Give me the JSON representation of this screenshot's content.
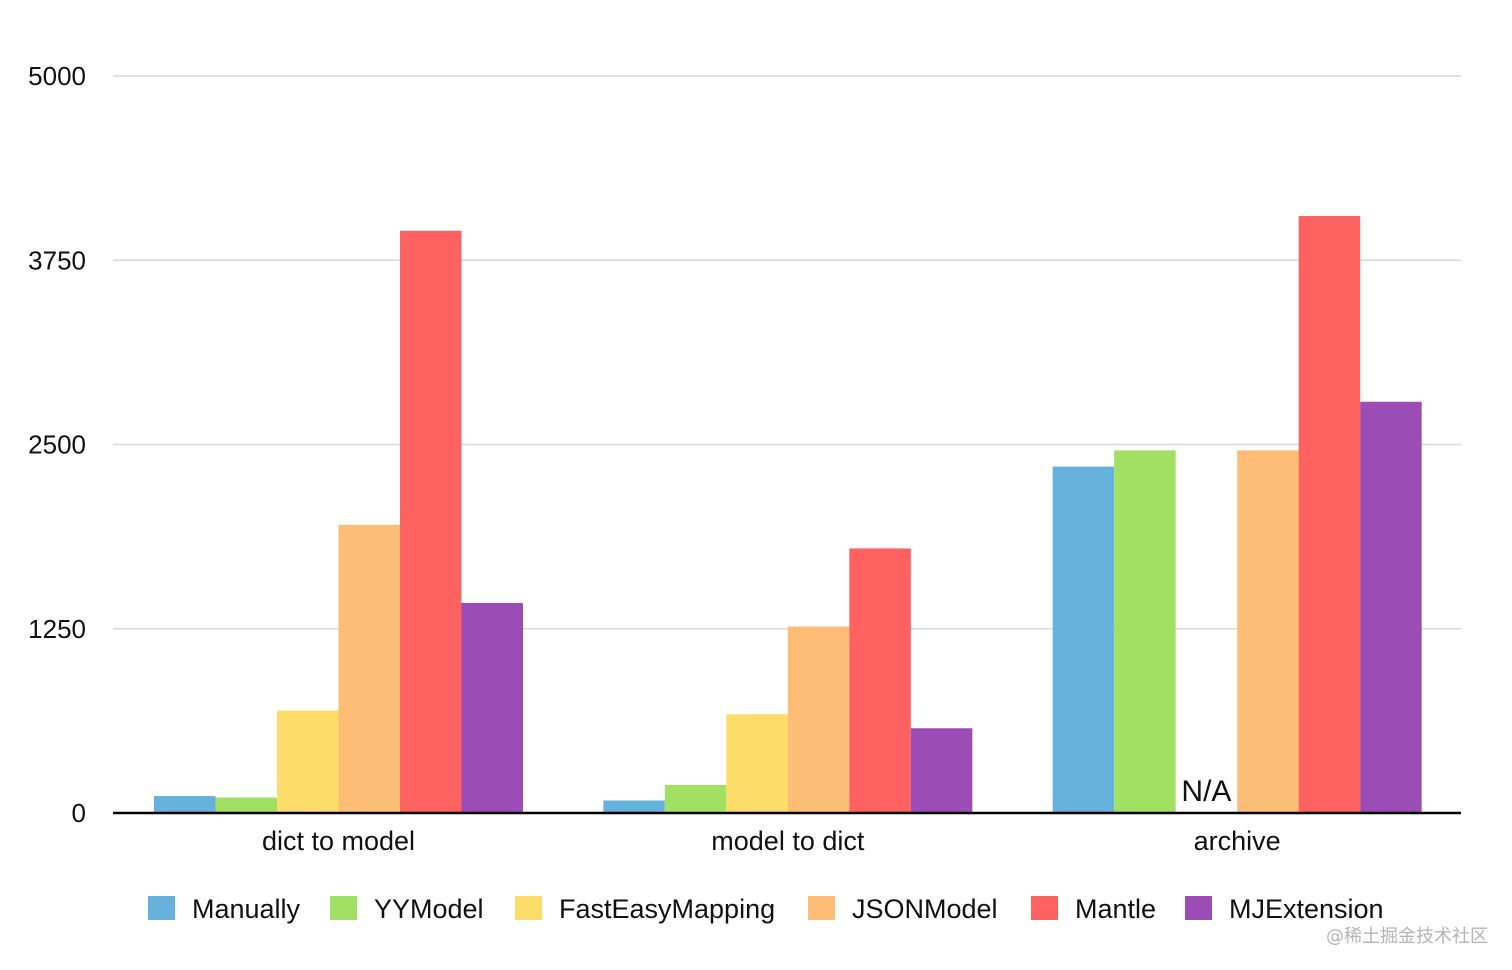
{
  "chart_data": {
    "type": "bar",
    "categories": [
      "dict to model",
      "model to dict",
      "archive"
    ],
    "ylim": [
      0,
      5000
    ],
    "yticks": [
      0,
      1250,
      2500,
      3750,
      5000
    ],
    "ytick_labels": [
      "0",
      "1250",
      "2500",
      "3750",
      "5000"
    ],
    "grid": true,
    "legend_position": "bottom",
    "series": [
      {
        "name": "Manually",
        "color": "#67b1dd",
        "values": [
          115,
          85,
          2350
        ]
      },
      {
        "name": "YYModel",
        "color": "#a2e063",
        "values": [
          105,
          190,
          2460
        ]
      },
      {
        "name": "FastEasyMapping",
        "color": "#fedc6a",
        "values": [
          695,
          670,
          null
        ]
      },
      {
        "name": "JSONModel",
        "color": "#fdbd76",
        "values": [
          1955,
          1265,
          2460
        ]
      },
      {
        "name": "Mantle",
        "color": "#fd6261",
        "values": [
          3950,
          1795,
          4050
        ]
      },
      {
        "name": "MJExtension",
        "color": "#9c4cb5",
        "values": [
          1425,
          575,
          2790
        ]
      }
    ],
    "annotations": [
      {
        "category": "archive",
        "series": "FastEasyMapping",
        "text": "N/A"
      }
    ]
  },
  "watermark": "@稀土掘金技术社区"
}
